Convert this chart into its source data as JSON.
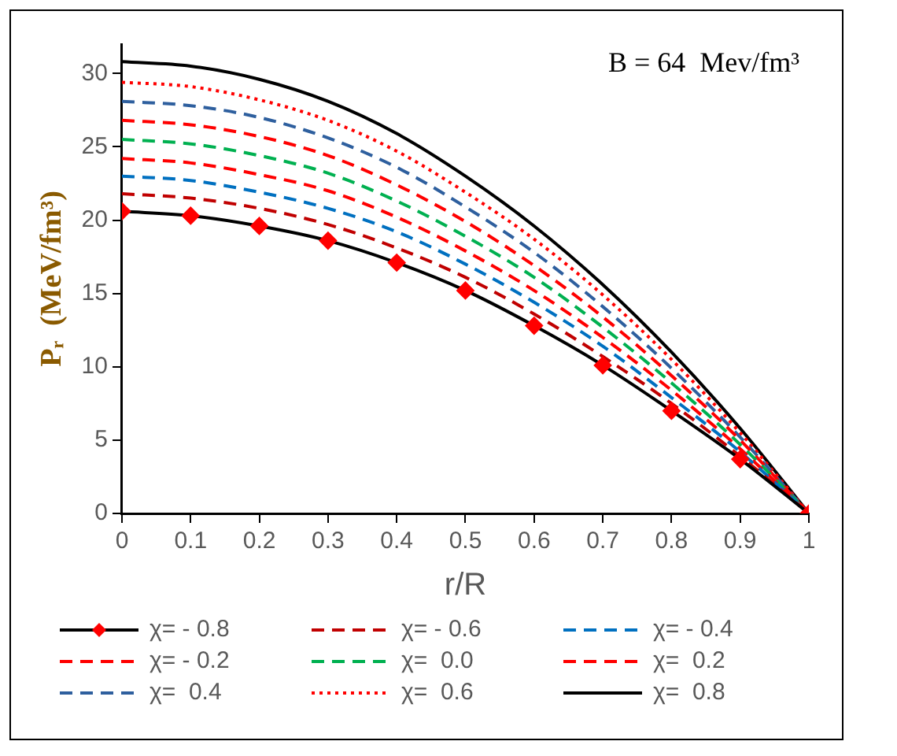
{
  "chart_data": {
    "type": "line",
    "xlabel": "r/R",
    "ylabel": "Pᵣ  (MeV/fm³)",
    "annotations": [
      "B = 64  Mev/fm³"
    ],
    "x": [
      0,
      0.1,
      0.2,
      0.3,
      0.4,
      0.5,
      0.6,
      0.7,
      0.8,
      0.9,
      1
    ],
    "xlim": [
      0,
      1
    ],
    "xticks": [
      0,
      0.1,
      0.2,
      0.3,
      0.4,
      0.5,
      0.6,
      0.7,
      0.8,
      0.9,
      1
    ],
    "ylim": [
      0,
      32
    ],
    "yticks": [
      0,
      5,
      10,
      15,
      20,
      25,
      30
    ],
    "grid": false,
    "legend": "bottom",
    "series": [
      {
        "name": "χ= - 0.8",
        "color": "#000000",
        "marker": "diamond",
        "line_style": "solid",
        "values": [
          20.6,
          20.3,
          19.6,
          18.6,
          17.1,
          15.2,
          12.8,
          10.1,
          7.0,
          3.7,
          0
        ]
      },
      {
        "name": "χ= - 0.6",
        "color": "#c00000",
        "marker": "none",
        "line_style": "dashed",
        "values": [
          21.8,
          21.5,
          20.8,
          19.7,
          18.1,
          16.1,
          13.6,
          10.7,
          7.5,
          3.9,
          0
        ]
      },
      {
        "name": "χ= - 0.4",
        "color": "#0070c0",
        "marker": "none",
        "line_style": "dashed",
        "values": [
          23.0,
          22.7,
          21.9,
          20.8,
          19.2,
          17.0,
          14.4,
          11.4,
          7.9,
          4.2,
          0
        ]
      },
      {
        "name": "χ= - 0.2",
        "color": "#ff0000",
        "marker": "none",
        "line_style": "dashed",
        "values": [
          24.2,
          23.9,
          23.1,
          22.0,
          20.2,
          17.9,
          15.2,
          12.0,
          8.4,
          4.4,
          0
        ]
      },
      {
        "name": "χ=  0.0",
        "color": "#00b050",
        "marker": "none",
        "line_style": "dashed",
        "values": [
          25.5,
          25.2,
          24.4,
          23.2,
          21.3,
          18.9,
          16.1,
          12.7,
          8.9,
          4.7,
          0
        ]
      },
      {
        "name": "χ=  0.2",
        "color": "#ff0000",
        "marker": "none",
        "line_style": "dashed",
        "values": [
          26.8,
          26.5,
          25.7,
          24.4,
          22.4,
          19.9,
          16.9,
          13.4,
          9.4,
          5.0,
          0
        ]
      },
      {
        "name": "χ=  0.4",
        "color": "#2e5f9e",
        "marker": "none",
        "line_style": "dashed",
        "values": [
          28.1,
          27.8,
          27.0,
          25.6,
          23.6,
          20.9,
          17.8,
          14.1,
          9.9,
          5.2,
          0
        ]
      },
      {
        "name": "χ=  0.6",
        "color": "#ff0000",
        "marker": "none",
        "line_style": "dotted",
        "values": [
          29.4,
          29.1,
          28.2,
          26.8,
          24.7,
          21.9,
          18.7,
          14.9,
          10.5,
          5.5,
          0
        ]
      },
      {
        "name": "χ=  0.8",
        "color": "#000000",
        "marker": "none",
        "line_style": "solid",
        "values": [
          30.8,
          30.5,
          29.6,
          28.1,
          25.9,
          23.0,
          19.6,
          15.6,
          11.0,
          5.8,
          0
        ]
      }
    ]
  }
}
